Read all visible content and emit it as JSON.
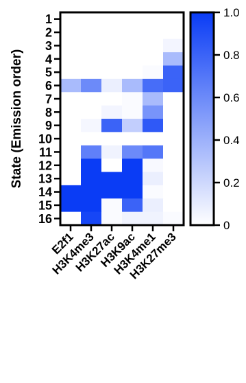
{
  "chart_data": {
    "type": "heatmap",
    "title": "",
    "xlabel": "",
    "ylabel": "State (Emission order)",
    "x_categories": [
      "E2f1",
      "H3K4me3",
      "H3K27ac",
      "H3K9ac",
      "H3K4me1",
      "H3K27me3"
    ],
    "y_categories": [
      "1",
      "2",
      "3",
      "4",
      "5",
      "6",
      "7",
      "8",
      "9",
      "10",
      "11",
      "12",
      "13",
      "14",
      "15",
      "16"
    ],
    "values": [
      [
        0.0,
        0.0,
        0.0,
        0.0,
        0.0,
        0.0
      ],
      [
        0.0,
        0.0,
        0.0,
        0.0,
        0.0,
        0.0
      ],
      [
        0.0,
        0.0,
        0.0,
        0.0,
        0.0,
        0.05
      ],
      [
        0.0,
        0.0,
        0.0,
        0.0,
        0.0,
        0.35
      ],
      [
        0.0,
        0.0,
        0.0,
        0.0,
        0.02,
        0.8
      ],
      [
        0.35,
        0.6,
        0.08,
        0.35,
        0.75,
        0.8
      ],
      [
        0.0,
        0.0,
        0.0,
        0.02,
        0.35,
        0.0
      ],
      [
        0.0,
        0.0,
        0.05,
        0.02,
        0.55,
        0.0
      ],
      [
        0.0,
        0.04,
        0.8,
        0.25,
        0.85,
        0.0
      ],
      [
        0.0,
        0.0,
        0.0,
        0.0,
        0.0,
        0.0
      ],
      [
        0.0,
        0.65,
        0.06,
        0.6,
        0.7,
        0.0
      ],
      [
        0.0,
        1.0,
        0.0,
        1.0,
        0.03,
        0.0
      ],
      [
        0.0,
        1.0,
        1.0,
        1.0,
        0.08,
        0.0
      ],
      [
        1.0,
        1.0,
        1.0,
        1.0,
        0.02,
        0.0
      ],
      [
        1.0,
        1.0,
        0.02,
        0.8,
        0.08,
        0.0
      ],
      [
        0.0,
        0.95,
        0.02,
        0.06,
        0.06,
        0.02
      ]
    ],
    "colorbar": {
      "min": 0,
      "max": 1.0,
      "ticks": [
        "0",
        "0.2",
        "0.4",
        "0.6",
        "0.8",
        "1.0"
      ],
      "low_color": "#ffffff",
      "high_color": "#0a3cf5"
    },
    "grid": false
  }
}
